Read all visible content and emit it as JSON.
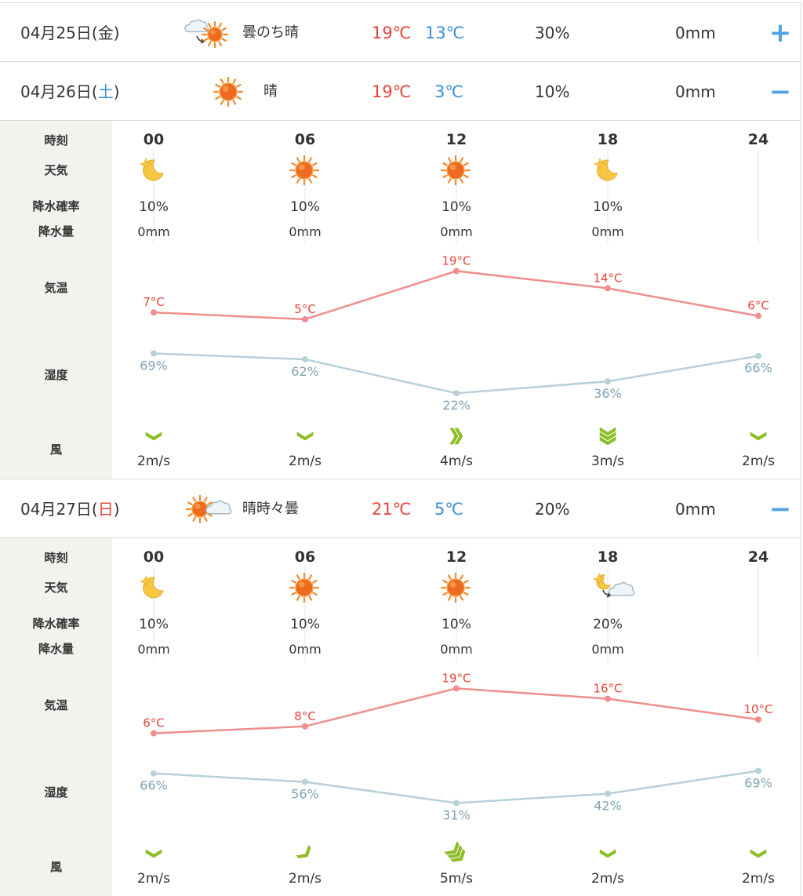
{
  "days": [
    {
      "date": "04月25日(",
      "dow": "金",
      "date_end": ")",
      "dow_color": "#333333",
      "weather_icon": "cloudy-then-sunny-icon",
      "weather_text": "曇のち晴",
      "temp_max": "19℃",
      "temp_min": "13℃",
      "precip_prob": "30%",
      "precip_amount": "0mm",
      "toggle": "+"
    },
    {
      "date": "04月26日(",
      "dow": "土",
      "date_end": ")",
      "dow_color": "#3b8fd9",
      "weather_icon": "sunny-icon",
      "weather_text": "晴",
      "temp_max": "19℃",
      "temp_min": "3℃",
      "precip_prob": "10%",
      "precip_amount": "0mm",
      "toggle": "−",
      "hourly": {
        "labels": {
          "time": "時刻",
          "weather": "天気",
          "pop": "降水確率",
          "precip": "降水量",
          "temp": "気温",
          "humidity": "湿度",
          "wind": "風"
        },
        "hours": [
          "00",
          "06",
          "12",
          "18",
          "24"
        ],
        "icons": [
          "moon-icon",
          "sunny-icon",
          "sunny-icon",
          "moon-icon",
          ""
        ],
        "pop": [
          "10%",
          "10%",
          "10%",
          "10%",
          ""
        ],
        "precip": [
          "0mm",
          "0mm",
          "0mm",
          "0mm",
          ""
        ],
        "temps": [
          7,
          5,
          19,
          14,
          6
        ],
        "humidity": [
          69,
          62,
          22,
          36,
          66
        ],
        "wind_speed": [
          "2m/s",
          "2m/s",
          "4m/s",
          "3m/s",
          "2m/s"
        ],
        "wind_dir": [
          "north-wind-icon",
          "north-wind-icon",
          "west-wind-icon",
          "north-wind-icon",
          "north-wind-icon"
        ],
        "wind_strength": [
          1,
          1,
          2,
          3,
          1
        ]
      }
    },
    {
      "date": "04月27日(",
      "dow": "日",
      "date_end": ")",
      "dow_color": "#e8433a",
      "weather_icon": "sunny-sometimes-cloudy-icon",
      "weather_text": "晴時々曇",
      "temp_max": "21℃",
      "temp_min": "5℃",
      "precip_prob": "20%",
      "precip_amount": "0mm",
      "toggle": "−",
      "hourly": {
        "labels": {
          "time": "時刻",
          "weather": "天気",
          "pop": "降水確率",
          "precip": "降水量",
          "temp": "気温",
          "humidity": "湿度",
          "wind": "風"
        },
        "hours": [
          "00",
          "06",
          "12",
          "18",
          "24"
        ],
        "icons": [
          "moon-icon",
          "sunny-icon",
          "sunny-icon",
          "moon-then-cloudy-icon",
          ""
        ],
        "pop": [
          "10%",
          "10%",
          "10%",
          "20%",
          ""
        ],
        "precip": [
          "0mm",
          "0mm",
          "0mm",
          "0mm",
          ""
        ],
        "temps": [
          6,
          8,
          19,
          16,
          10
        ],
        "humidity": [
          66,
          56,
          31,
          42,
          69
        ],
        "wind_speed": [
          "2m/s",
          "2m/s",
          "5m/s",
          "2m/s",
          "2m/s"
        ],
        "wind_dir": [
          "north-wind-icon",
          "northeast-wind-icon",
          "northeast-wind-icon",
          "north-wind-icon",
          "north-wind-icon"
        ],
        "wind_strength": [
          1,
          1,
          3,
          1,
          1
        ]
      }
    }
  ],
  "chart_data": [
    {
      "type": "line",
      "title": "04月26日(土)",
      "x": [
        "00",
        "06",
        "12",
        "18",
        "24"
      ],
      "series": [
        {
          "name": "気温",
          "unit": "°C",
          "values": [
            7,
            5,
            19,
            14,
            6
          ],
          "color": "#ef8e8e"
        },
        {
          "name": "湿度",
          "unit": "%",
          "values": [
            69,
            62,
            22,
            36,
            66
          ],
          "color": "#b7d0da"
        }
      ]
    },
    {
      "type": "line",
      "title": "04月27日(日)",
      "x": [
        "00",
        "06",
        "12",
        "18",
        "24"
      ],
      "series": [
        {
          "name": "気温",
          "unit": "°C",
          "values": [
            6,
            8,
            19,
            16,
            10
          ],
          "color": "#ef8e8e"
        },
        {
          "name": "湿度",
          "unit": "%",
          "values": [
            66,
            56,
            31,
            42,
            69
          ],
          "color": "#b7d0da"
        }
      ]
    }
  ],
  "colors": {
    "temp_max": "#e8433a",
    "temp_min": "#3b8fd9",
    "temp_line": "#ef8e8e",
    "humidity_line": "#b7d0da",
    "humidity_text": "#7fa4b7",
    "wind": "#8ec31f"
  }
}
